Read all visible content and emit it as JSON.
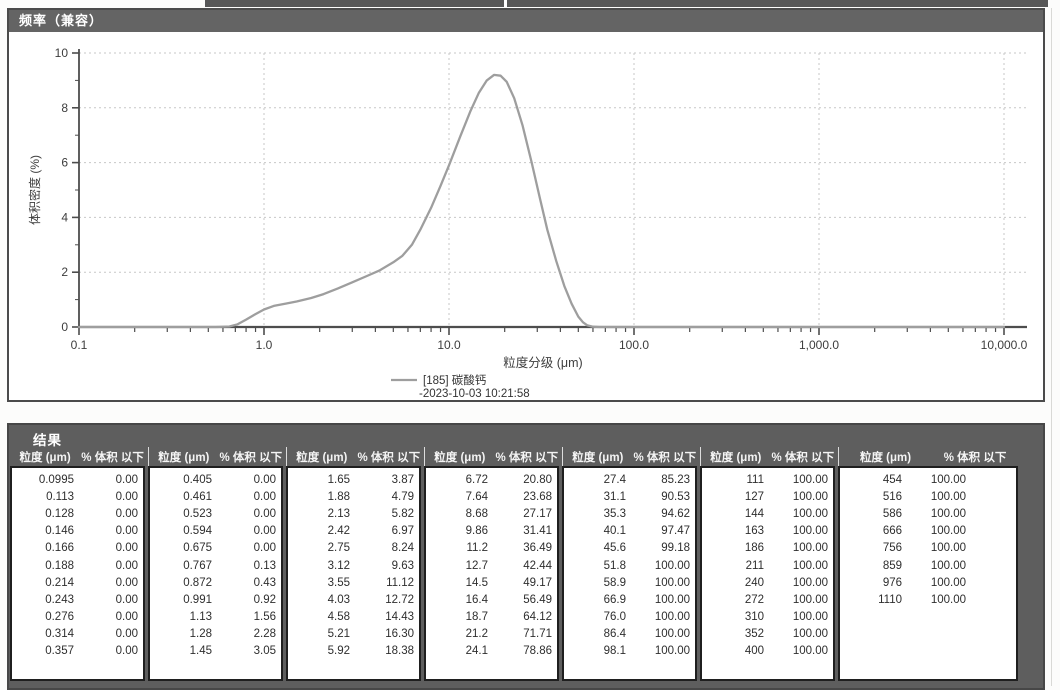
{
  "frequency_panel": {
    "title": "频率（兼容）"
  },
  "chart_data": {
    "type": "line",
    "title": "频率（兼容）",
    "xlabel": "粒度分级 (μm)",
    "ylabel": "体积密度 (%)",
    "x_scale": "log",
    "xlim": [
      0.1,
      10000
    ],
    "ylim": [
      0,
      10
    ],
    "x_tick_labels": [
      "0.1",
      "1.0",
      "10.0",
      "100.0",
      "1,000.0",
      "10,000.0"
    ],
    "x_tick_values": [
      0.1,
      1,
      10,
      100,
      1000,
      10000
    ],
    "y_tick_values": [
      0,
      2,
      4,
      6,
      8,
      10
    ],
    "grid": true,
    "legend": {
      "label": "[185] 碳酸钙",
      "sub_label": "-2023-10-03 10:21:58",
      "position": "bottom-center"
    },
    "series": [
      {
        "name": "[185] 碳酸钙",
        "color": "#9e9e9e",
        "points": [
          [
            0.1,
            0
          ],
          [
            0.55,
            0
          ],
          [
            0.65,
            0.02
          ],
          [
            0.72,
            0.1
          ],
          [
            0.8,
            0.27
          ],
          [
            0.9,
            0.47
          ],
          [
            1.0,
            0.64
          ],
          [
            1.13,
            0.77
          ],
          [
            1.3,
            0.85
          ],
          [
            1.5,
            0.93
          ],
          [
            1.8,
            1.06
          ],
          [
            2.1,
            1.2
          ],
          [
            2.5,
            1.4
          ],
          [
            3.0,
            1.63
          ],
          [
            3.6,
            1.86
          ],
          [
            4.2,
            2.06
          ],
          [
            5.0,
            2.36
          ],
          [
            5.6,
            2.6
          ],
          [
            6.3,
            3.0
          ],
          [
            7.0,
            3.55
          ],
          [
            8.0,
            4.35
          ],
          [
            9.0,
            5.15
          ],
          [
            10,
            5.9
          ],
          [
            11.5,
            6.95
          ],
          [
            13,
            7.85
          ],
          [
            14.5,
            8.55
          ],
          [
            16,
            9.0
          ],
          [
            17.5,
            9.2
          ],
          [
            19,
            9.17
          ],
          [
            20.5,
            8.95
          ],
          [
            22.5,
            8.35
          ],
          [
            25,
            7.35
          ],
          [
            28,
            6.0
          ],
          [
            31,
            4.7
          ],
          [
            34,
            3.55
          ],
          [
            38,
            2.4
          ],
          [
            42,
            1.5
          ],
          [
            46,
            0.85
          ],
          [
            50,
            0.38
          ],
          [
            53,
            0.17
          ],
          [
            56,
            0.06
          ],
          [
            60,
            0.01
          ],
          [
            65,
            0
          ],
          [
            10000,
            0
          ]
        ]
      }
    ]
  },
  "results_table": {
    "title": "结果",
    "column_headers": {
      "size": "粒度 (μm)",
      "pct": "% 体积 以下"
    },
    "groups": [
      [
        [
          "0.0995",
          "0.00"
        ],
        [
          "0.113",
          "0.00"
        ],
        [
          "0.128",
          "0.00"
        ],
        [
          "0.146",
          "0.00"
        ],
        [
          "0.166",
          "0.00"
        ],
        [
          "0.188",
          "0.00"
        ],
        [
          "0.214",
          "0.00"
        ],
        [
          "0.243",
          "0.00"
        ],
        [
          "0.276",
          "0.00"
        ],
        [
          "0.314",
          "0.00"
        ],
        [
          "0.357",
          "0.00"
        ]
      ],
      [
        [
          "0.405",
          "0.00"
        ],
        [
          "0.461",
          "0.00"
        ],
        [
          "0.523",
          "0.00"
        ],
        [
          "0.594",
          "0.00"
        ],
        [
          "0.675",
          "0.00"
        ],
        [
          "0.767",
          "0.13"
        ],
        [
          "0.872",
          "0.43"
        ],
        [
          "0.991",
          "0.92"
        ],
        [
          "1.13",
          "1.56"
        ],
        [
          "1.28",
          "2.28"
        ],
        [
          "1.45",
          "3.05"
        ]
      ],
      [
        [
          "1.65",
          "3.87"
        ],
        [
          "1.88",
          "4.79"
        ],
        [
          "2.13",
          "5.82"
        ],
        [
          "2.42",
          "6.97"
        ],
        [
          "2.75",
          "8.24"
        ],
        [
          "3.12",
          "9.63"
        ],
        [
          "3.55",
          "11.12"
        ],
        [
          "4.03",
          "12.72"
        ],
        [
          "4.58",
          "14.43"
        ],
        [
          "5.21",
          "16.30"
        ],
        [
          "5.92",
          "18.38"
        ]
      ],
      [
        [
          "6.72",
          "20.80"
        ],
        [
          "7.64",
          "23.68"
        ],
        [
          "8.68",
          "27.17"
        ],
        [
          "9.86",
          "31.41"
        ],
        [
          "11.2",
          "36.49"
        ],
        [
          "12.7",
          "42.44"
        ],
        [
          "14.5",
          "49.17"
        ],
        [
          "16.4",
          "56.49"
        ],
        [
          "18.7",
          "64.12"
        ],
        [
          "21.2",
          "71.71"
        ],
        [
          "24.1",
          "78.86"
        ]
      ],
      [
        [
          "27.4",
          "85.23"
        ],
        [
          "31.1",
          "90.53"
        ],
        [
          "35.3",
          "94.62"
        ],
        [
          "40.1",
          "97.47"
        ],
        [
          "45.6",
          "99.18"
        ],
        [
          "51.8",
          "100.00"
        ],
        [
          "58.9",
          "100.00"
        ],
        [
          "66.9",
          "100.00"
        ],
        [
          "76.0",
          "100.00"
        ],
        [
          "86.4",
          "100.00"
        ],
        [
          "98.1",
          "100.00"
        ]
      ],
      [
        [
          "111",
          "100.00"
        ],
        [
          "127",
          "100.00"
        ],
        [
          "144",
          "100.00"
        ],
        [
          "163",
          "100.00"
        ],
        [
          "186",
          "100.00"
        ],
        [
          "211",
          "100.00"
        ],
        [
          "240",
          "100.00"
        ],
        [
          "272",
          "100.00"
        ],
        [
          "310",
          "100.00"
        ],
        [
          "352",
          "100.00"
        ],
        [
          "400",
          "100.00"
        ]
      ],
      [
        [
          "454",
          "100.00"
        ],
        [
          "516",
          "100.00"
        ],
        [
          "586",
          "100.00"
        ],
        [
          "666",
          "100.00"
        ],
        [
          "756",
          "100.00"
        ],
        [
          "859",
          "100.00"
        ],
        [
          "976",
          "100.00"
        ],
        [
          "1110",
          "100.00"
        ]
      ]
    ]
  },
  "colors": {
    "panel_header_bg": "#646464",
    "results_bg": "#5e5e5e",
    "curve": "#9e9e9e",
    "axis": "#4d4d4d",
    "grid": "#c7c7c7",
    "table_text": "#2e2e2e",
    "header_text": "#ffffff"
  }
}
